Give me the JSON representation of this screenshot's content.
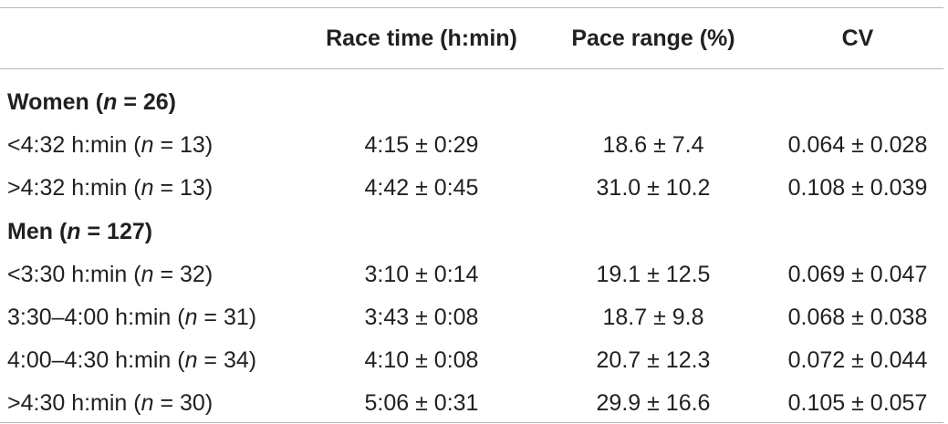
{
  "table": {
    "header": [
      "Race time (h:min)",
      "Pace range (%)",
      "CV"
    ],
    "groups": [
      {
        "title": [
          "Women (",
          "n",
          " = 26)"
        ],
        "rows": [
          {
            "label": [
              "<4:32 h:min (",
              "n",
              " = 13)"
            ],
            "cells": [
              "4:15 ± 0:29",
              "18.6 ± 7.4",
              "0.064 ± 0.028"
            ]
          },
          {
            "label": [
              ">4:32 h:min (",
              "n",
              " = 13)"
            ],
            "cells": [
              "4:42 ± 0:45",
              "31.0 ± 10.2",
              "0.108 ± 0.039"
            ]
          }
        ]
      },
      {
        "title": [
          "Men (",
          "n",
          " = 127)"
        ],
        "rows": [
          {
            "label": [
              "<3:30 h:min (",
              "n",
              " = 32)"
            ],
            "cells": [
              "3:10 ± 0:14",
              "19.1 ± 12.5",
              "0.069 ± 0.047"
            ]
          },
          {
            "label": [
              "3:30–4:00 h:min (",
              "n",
              " = 31)"
            ],
            "cells": [
              "3:43 ± 0:08",
              "18.7 ± 9.8",
              "0.068 ± 0.038"
            ]
          },
          {
            "label": [
              "4:00–4:30 h:min (",
              "n",
              " = 34)"
            ],
            "cells": [
              "4:10 ± 0:08",
              "20.7 ± 12.3",
              "0.072 ± 0.044"
            ]
          },
          {
            "label": [
              ">4:30 h:min (",
              "n",
              " = 30)"
            ],
            "cells": [
              "5:06 ± 0:31",
              "29.9 ± 16.6",
              "0.105 ± 0.057"
            ]
          }
        ]
      }
    ]
  }
}
